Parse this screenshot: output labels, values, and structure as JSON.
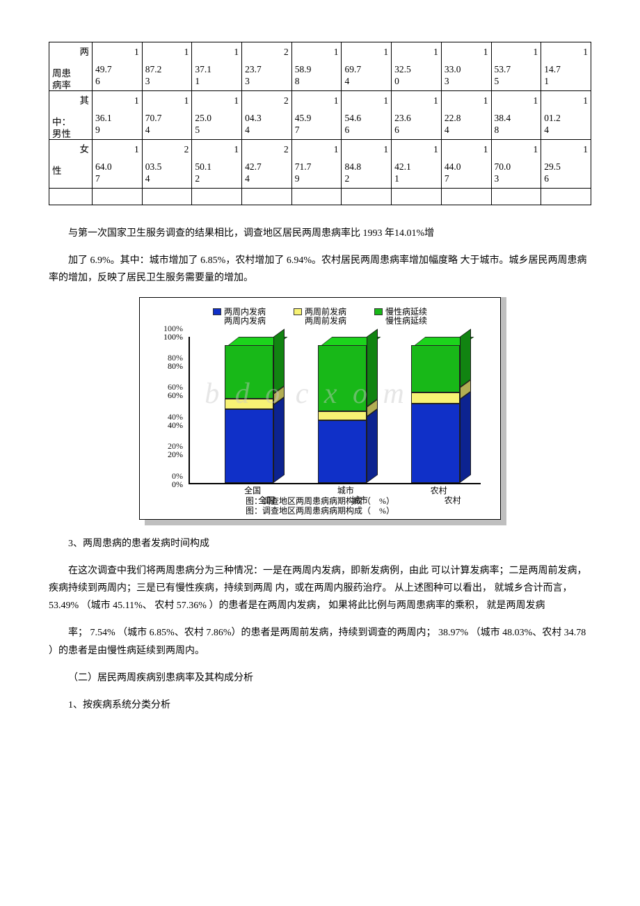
{
  "table": {
    "rows": [
      {
        "label": "两\n周患\n病率",
        "values": [
          "1\n49.7\n6",
          "1\n87.2\n3",
          "1\n37.1\n1",
          "2\n23.7\n3",
          "1\n58.9\n8",
          "1\n69.7\n4",
          "1\n32.5\n0",
          "1\n33.0\n3",
          "1\n53.7\n5",
          "1\n14.7\n1"
        ]
      },
      {
        "label": "其\n中：\n男性",
        "values": [
          "1\n36.1\n9",
          "1\n70.7\n4",
          "1\n25.0\n5",
          "2\n04.3\n4",
          "1\n45.9\n7",
          "1\n54.6\n6",
          "1\n23.6\n6",
          "1\n22.8\n4",
          "1\n38.4\n8",
          "1\n01.2\n4"
        ]
      },
      {
        "label": "女\n性",
        "values": [
          "1\n64.0\n7",
          "2\n03.5\n4",
          "1\n50.1\n2",
          "2\n42.7\n4",
          "1\n71.7\n9",
          "1\n84.8\n2",
          "1\n42.1\n1",
          "1\n44.0\n7",
          "1\n70.0\n3",
          "1\n29.5\n6"
        ]
      }
    ]
  },
  "paragraphs": {
    "p1": "与第一次国家卫生服务调查的结果相比，调查地区居民两周患病率比 1993 年14.01%增",
    "p2": "加了 6.9%。其中：城市增加了 6.85%，农村增加了 6.94%。农村居民两周患病率增加幅度略 大于城市。城乡居民两周患病率的增加，反映了居民卫生服务需要量的增加。",
    "h3": "3、两周患病的患者发病时间构成",
    "p3": "在这次调查中我们将两周患病分为三种情况：一是在两周内发病，即新发病例，由此 可以计算发病率；二是两周前发病，疾病持续到两周内；三是已有慢性疾病，持续到两周 内，或在两周内服药治疗。 从上述图种可以看出， 就城乡合计而言， 53.49% （城市 45.11%、 农村 57.36% ）的患者是在两周内发病， 如果将此比例与两周患病率的乘积， 就是两周发病",
    "p4": "率； 7.54% （城市 6.85%、农村 7.86%）的患者是两周前发病，持续到调查的两周内； 38.97% （城市 48.03%、农村 34.78 ）的患者是由慢性病延续到两周内。",
    "h4": "（二）居民两周疾病别患病率及其构成分析",
    "h5": "1、按疾病系统分类分析"
  },
  "chart": {
    "type": "stacked-bar-3d",
    "watermark": "b d o c x o m",
    "legend": [
      {
        "label": "两周内发病",
        "color": "#1030c8"
      },
      {
        "label": "两周前发病",
        "color": "#f7f274"
      },
      {
        "label": "慢性病延续",
        "color": "#18b818"
      }
    ],
    "legend_dup": [
      {
        "label": "两周内发病"
      },
      {
        "label": "两周前发病"
      },
      {
        "label": "慢性病延续"
      }
    ],
    "yticks": [
      "0%",
      "20%",
      "40%",
      "60%",
      "80%",
      "100%"
    ],
    "bars": [
      {
        "x_pct": 12,
        "label": "全国",
        "label_dup": "全国",
        "segments": [
          {
            "color": "#1030c8",
            "pct": 53.49
          },
          {
            "color": "#f7f274",
            "pct": 7.54
          },
          {
            "color": "#18b818",
            "pct": 38.97
          }
        ]
      },
      {
        "x_pct": 44,
        "label": "城市",
        "label_dup": "城市",
        "segments": [
          {
            "color": "#1030c8",
            "pct": 45.11
          },
          {
            "color": "#f7f274",
            "pct": 6.85
          },
          {
            "color": "#18b818",
            "pct": 48.03
          }
        ]
      },
      {
        "x_pct": 76,
        "label": "农村",
        "label_dup": "农村",
        "segments": [
          {
            "color": "#1030c8",
            "pct": 57.36
          },
          {
            "color": "#f7f274",
            "pct": 7.86
          },
          {
            "color": "#18b818",
            "pct": 34.78
          }
        ]
      }
    ],
    "caption": "图：调查地区两周患病病期构成（　%）",
    "caption_dup": "图：调查地区两周患病病期构成（　%）",
    "grid_color": "#000",
    "background_color": "#ffffff"
  }
}
